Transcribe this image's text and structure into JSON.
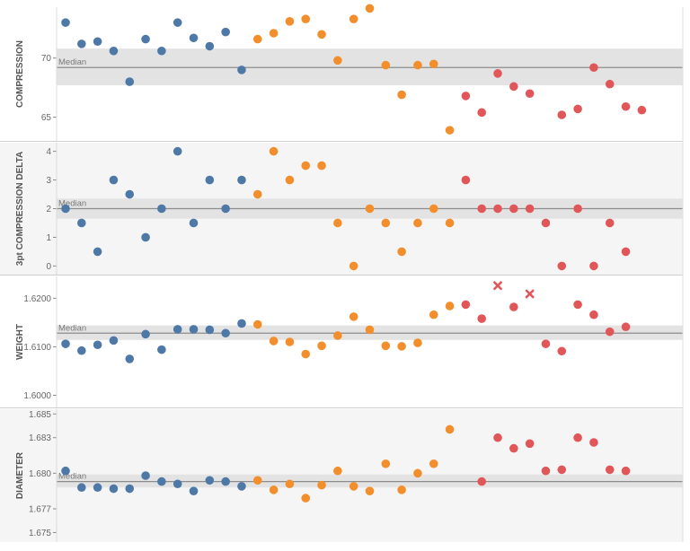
{
  "colors": {
    "group_1": "#4e79a7",
    "group_2": "#f28e2b",
    "group_3": "#e15759",
    "band": "#e3e3e3",
    "median_line": "#8c8c8c",
    "panel_shade": "#f5f5f5"
  },
  "chart_data": {
    "type": "scatter",
    "median_label": "Median",
    "x": [
      1,
      2,
      3,
      4,
      5,
      6,
      7,
      8,
      9,
      10,
      11,
      12,
      13,
      14,
      15,
      16,
      17,
      18,
      19,
      20,
      21,
      22,
      23,
      24,
      25,
      26,
      27,
      28,
      29,
      30,
      31,
      32,
      33,
      34,
      35,
      36,
      37,
      38,
      39
    ],
    "groups": [
      1,
      1,
      1,
      1,
      1,
      1,
      1,
      1,
      1,
      1,
      1,
      1,
      2,
      2,
      2,
      2,
      2,
      2,
      2,
      2,
      2,
      2,
      2,
      2,
      2,
      3,
      3,
      3,
      3,
      3,
      3,
      3,
      3,
      3,
      3,
      3,
      3,
      3,
      3
    ],
    "panels": [
      {
        "ylabel": "COMPRESSION",
        "ylim": [
          63.0,
          74.3
        ],
        "ticks": [
          65,
          70
        ],
        "tick_labels": [
          "65",
          "70"
        ],
        "median": 69.2,
        "band": [
          67.7,
          70.8
        ],
        "shaded": false,
        "values": [
          73.0,
          71.2,
          71.4,
          70.6,
          68.0,
          71.6,
          70.6,
          73.0,
          71.7,
          71.0,
          72.2,
          69.0,
          71.6,
          72.1,
          73.1,
          73.3,
          72.0,
          69.8,
          73.3,
          74.2,
          69.4,
          66.9,
          69.4,
          69.5,
          63.9,
          66.8,
          65.4,
          68.7,
          67.6,
          67.0,
          65.2,
          65.7,
          69.2,
          67.8,
          65.9,
          65.6
        ],
        "marker_x": [
          1,
          2,
          3,
          4,
          5,
          6,
          7,
          8,
          9,
          10,
          11,
          12,
          13,
          14,
          15,
          16,
          17,
          18,
          19,
          20,
          21,
          22,
          23,
          24,
          25,
          26,
          27,
          28,
          29,
          30,
          32,
          33,
          34,
          35,
          36,
          37
        ],
        "markers": [
          "circle"
        ]
      },
      {
        "ylabel": "3pt COMPRESSION DELTA",
        "ylim": [
          -0.3,
          4.3
        ],
        "ticks": [
          0,
          1,
          2,
          3,
          4
        ],
        "tick_labels": [
          "0",
          "1",
          "2",
          "3",
          "4"
        ],
        "median": 2.0,
        "band": [
          1.65,
          2.35
        ],
        "shaded": true,
        "values": [
          2.0,
          1.5,
          0.5,
          3.0,
          2.5,
          1.0,
          2.0,
          4.0,
          1.5,
          3.0,
          2.0,
          3.0,
          2.5,
          4.0,
          3.0,
          3.5,
          3.5,
          1.5,
          0.0,
          2.0,
          1.5,
          0.5,
          1.5,
          2.0,
          1.5,
          3.0,
          2.0,
          2.0,
          2.0,
          2.0,
          1.5,
          0.0,
          2.0,
          0.0,
          1.5,
          0.5
        ],
        "marker_x": [
          1,
          2,
          3,
          4,
          5,
          6,
          7,
          8,
          9,
          10,
          11,
          12,
          13,
          14,
          15,
          16,
          17,
          18,
          19,
          20,
          21,
          22,
          23,
          24,
          25,
          26,
          27,
          28,
          29,
          30,
          31,
          32,
          33,
          34,
          35,
          36
        ],
        "markers": [
          "circle"
        ]
      },
      {
        "ylabel": "WEIGHT",
        "ylim": [
          1.5975,
          1.6245
        ],
        "ticks": [
          1.6,
          1.61,
          1.62
        ],
        "tick_labels": [
          "1.6000",
          "1.6100",
          "1.6200"
        ],
        "median": 1.6128,
        "band": [
          1.6114,
          1.6144
        ],
        "shaded": false,
        "values": [
          1.6106,
          1.6092,
          1.6104,
          1.6113,
          1.6075,
          1.6126,
          1.6094,
          1.6136,
          1.6136,
          1.6135,
          1.6128,
          1.6148,
          1.6146,
          1.6112,
          1.611,
          1.6085,
          1.6102,
          1.6123,
          1.6162,
          1.6135,
          1.6102,
          1.6101,
          1.6108,
          1.6166,
          1.6184,
          1.6187,
          1.6158,
          1.6226,
          1.6182,
          1.6209,
          1.6106,
          1.6091,
          1.6187,
          1.6166,
          1.6131,
          1.6141
        ],
        "marker_x": [
          1,
          2,
          3,
          4,
          5,
          6,
          7,
          8,
          9,
          10,
          11,
          12,
          13,
          14,
          15,
          16,
          17,
          18,
          19,
          20,
          21,
          22,
          23,
          24,
          25,
          26,
          27,
          28,
          29,
          30,
          31,
          32,
          33,
          34,
          35,
          36
        ],
        "markers": [
          "circle",
          "circle",
          "circle",
          "circle",
          "circle",
          "circle",
          "circle",
          "circle",
          "circle",
          "circle",
          "circle",
          "circle",
          "circle",
          "circle",
          "circle",
          "circle",
          "circle",
          "circle",
          "circle",
          "circle",
          "circle",
          "circle",
          "circle",
          "circle",
          "circle",
          "circle",
          "circle",
          "x",
          "circle",
          "x",
          "circle",
          "circle",
          "circle",
          "circle",
          "circle",
          "circle"
        ]
      },
      {
        "ylabel": "DIAMETER",
        "ylim": [
          1.6742,
          1.6854
        ],
        "ticks": [
          1.675,
          1.677,
          1.68,
          1.683,
          1.685
        ],
        "tick_labels": [
          "1.675",
          "1.677",
          "1.680",
          "1.683",
          "1.685"
        ],
        "median": 1.6793,
        "band": [
          1.6788,
          1.6799
        ],
        "shaded": true,
        "values": [
          1.6802,
          1.6788,
          1.6788,
          1.6787,
          1.6787,
          1.6798,
          1.6793,
          1.6791,
          1.6785,
          1.6794,
          1.6793,
          1.6789,
          1.6794,
          1.6786,
          1.6791,
          1.6779,
          1.679,
          1.6802,
          1.6789,
          1.6785,
          1.6808,
          1.6786,
          1.68,
          1.6808,
          1.6837,
          1.6793,
          1.683,
          1.6821,
          1.6825,
          1.6802,
          1.6803,
          1.683,
          1.6826,
          1.6803,
          1.6802
        ],
        "marker_x": [
          1,
          2,
          3,
          4,
          5,
          6,
          7,
          8,
          9,
          10,
          11,
          12,
          13,
          14,
          15,
          16,
          17,
          18,
          19,
          20,
          21,
          22,
          23,
          24,
          25,
          27,
          28,
          29,
          30,
          31,
          32,
          33,
          34,
          35,
          36
        ],
        "markers": [
          "circle"
        ]
      }
    ]
  }
}
